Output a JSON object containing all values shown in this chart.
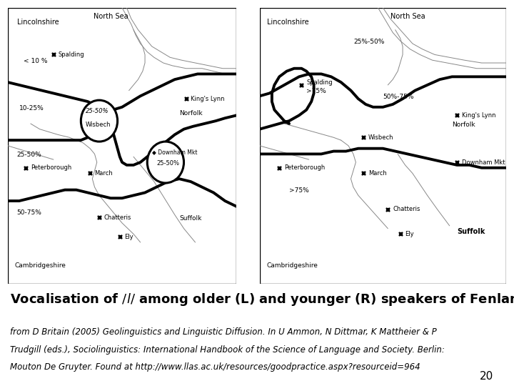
{
  "title": "Vocalisation of /l/ among older (L) and younger (R) speakers of Fenland English",
  "caption_line1": "from D Britain (2005) Geolinguistics and Linguistic Diffusion. In U Ammon, N Dittmar, K Mattheier & P",
  "caption_line2": "Trudgill (eds.), Sociolinguistics: International Handbook of the Science of Language and Society. Berlin:",
  "caption_line3": "Mouton De Gruyter. Found at http://www.llas.ac.uk/resources/goodpractice.aspx?resourceid=964",
  "page_number": "20",
  "bg_color": "#ffffff",
  "title_fontsize": 13,
  "caption_fontsize": 8.5,
  "page_num_fontsize": 11
}
